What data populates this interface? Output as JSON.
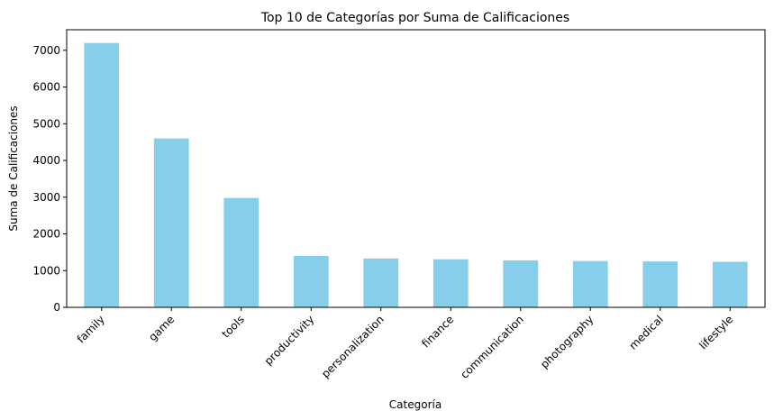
{
  "chart_data": {
    "type": "bar",
    "title": "Top 10 de Categorías por Suma de Calificaciones",
    "xlabel": "Categoría",
    "ylabel": "Suma de Calificaciones",
    "categories": [
      "family",
      "game",
      "tools",
      "productivity",
      "personalization",
      "finance",
      "communication",
      "photography",
      "medical",
      "lifestyle"
    ],
    "values": [
      7200,
      4600,
      2980,
      1400,
      1330,
      1310,
      1280,
      1260,
      1250,
      1240
    ],
    "ylim": [
      0,
      7560
    ],
    "yticks": [
      0,
      1000,
      2000,
      3000,
      4000,
      5000,
      6000,
      7000
    ],
    "grid": false,
    "legend": "none",
    "bar_color": "#87ceeb",
    "axis_color": "#000000"
  }
}
